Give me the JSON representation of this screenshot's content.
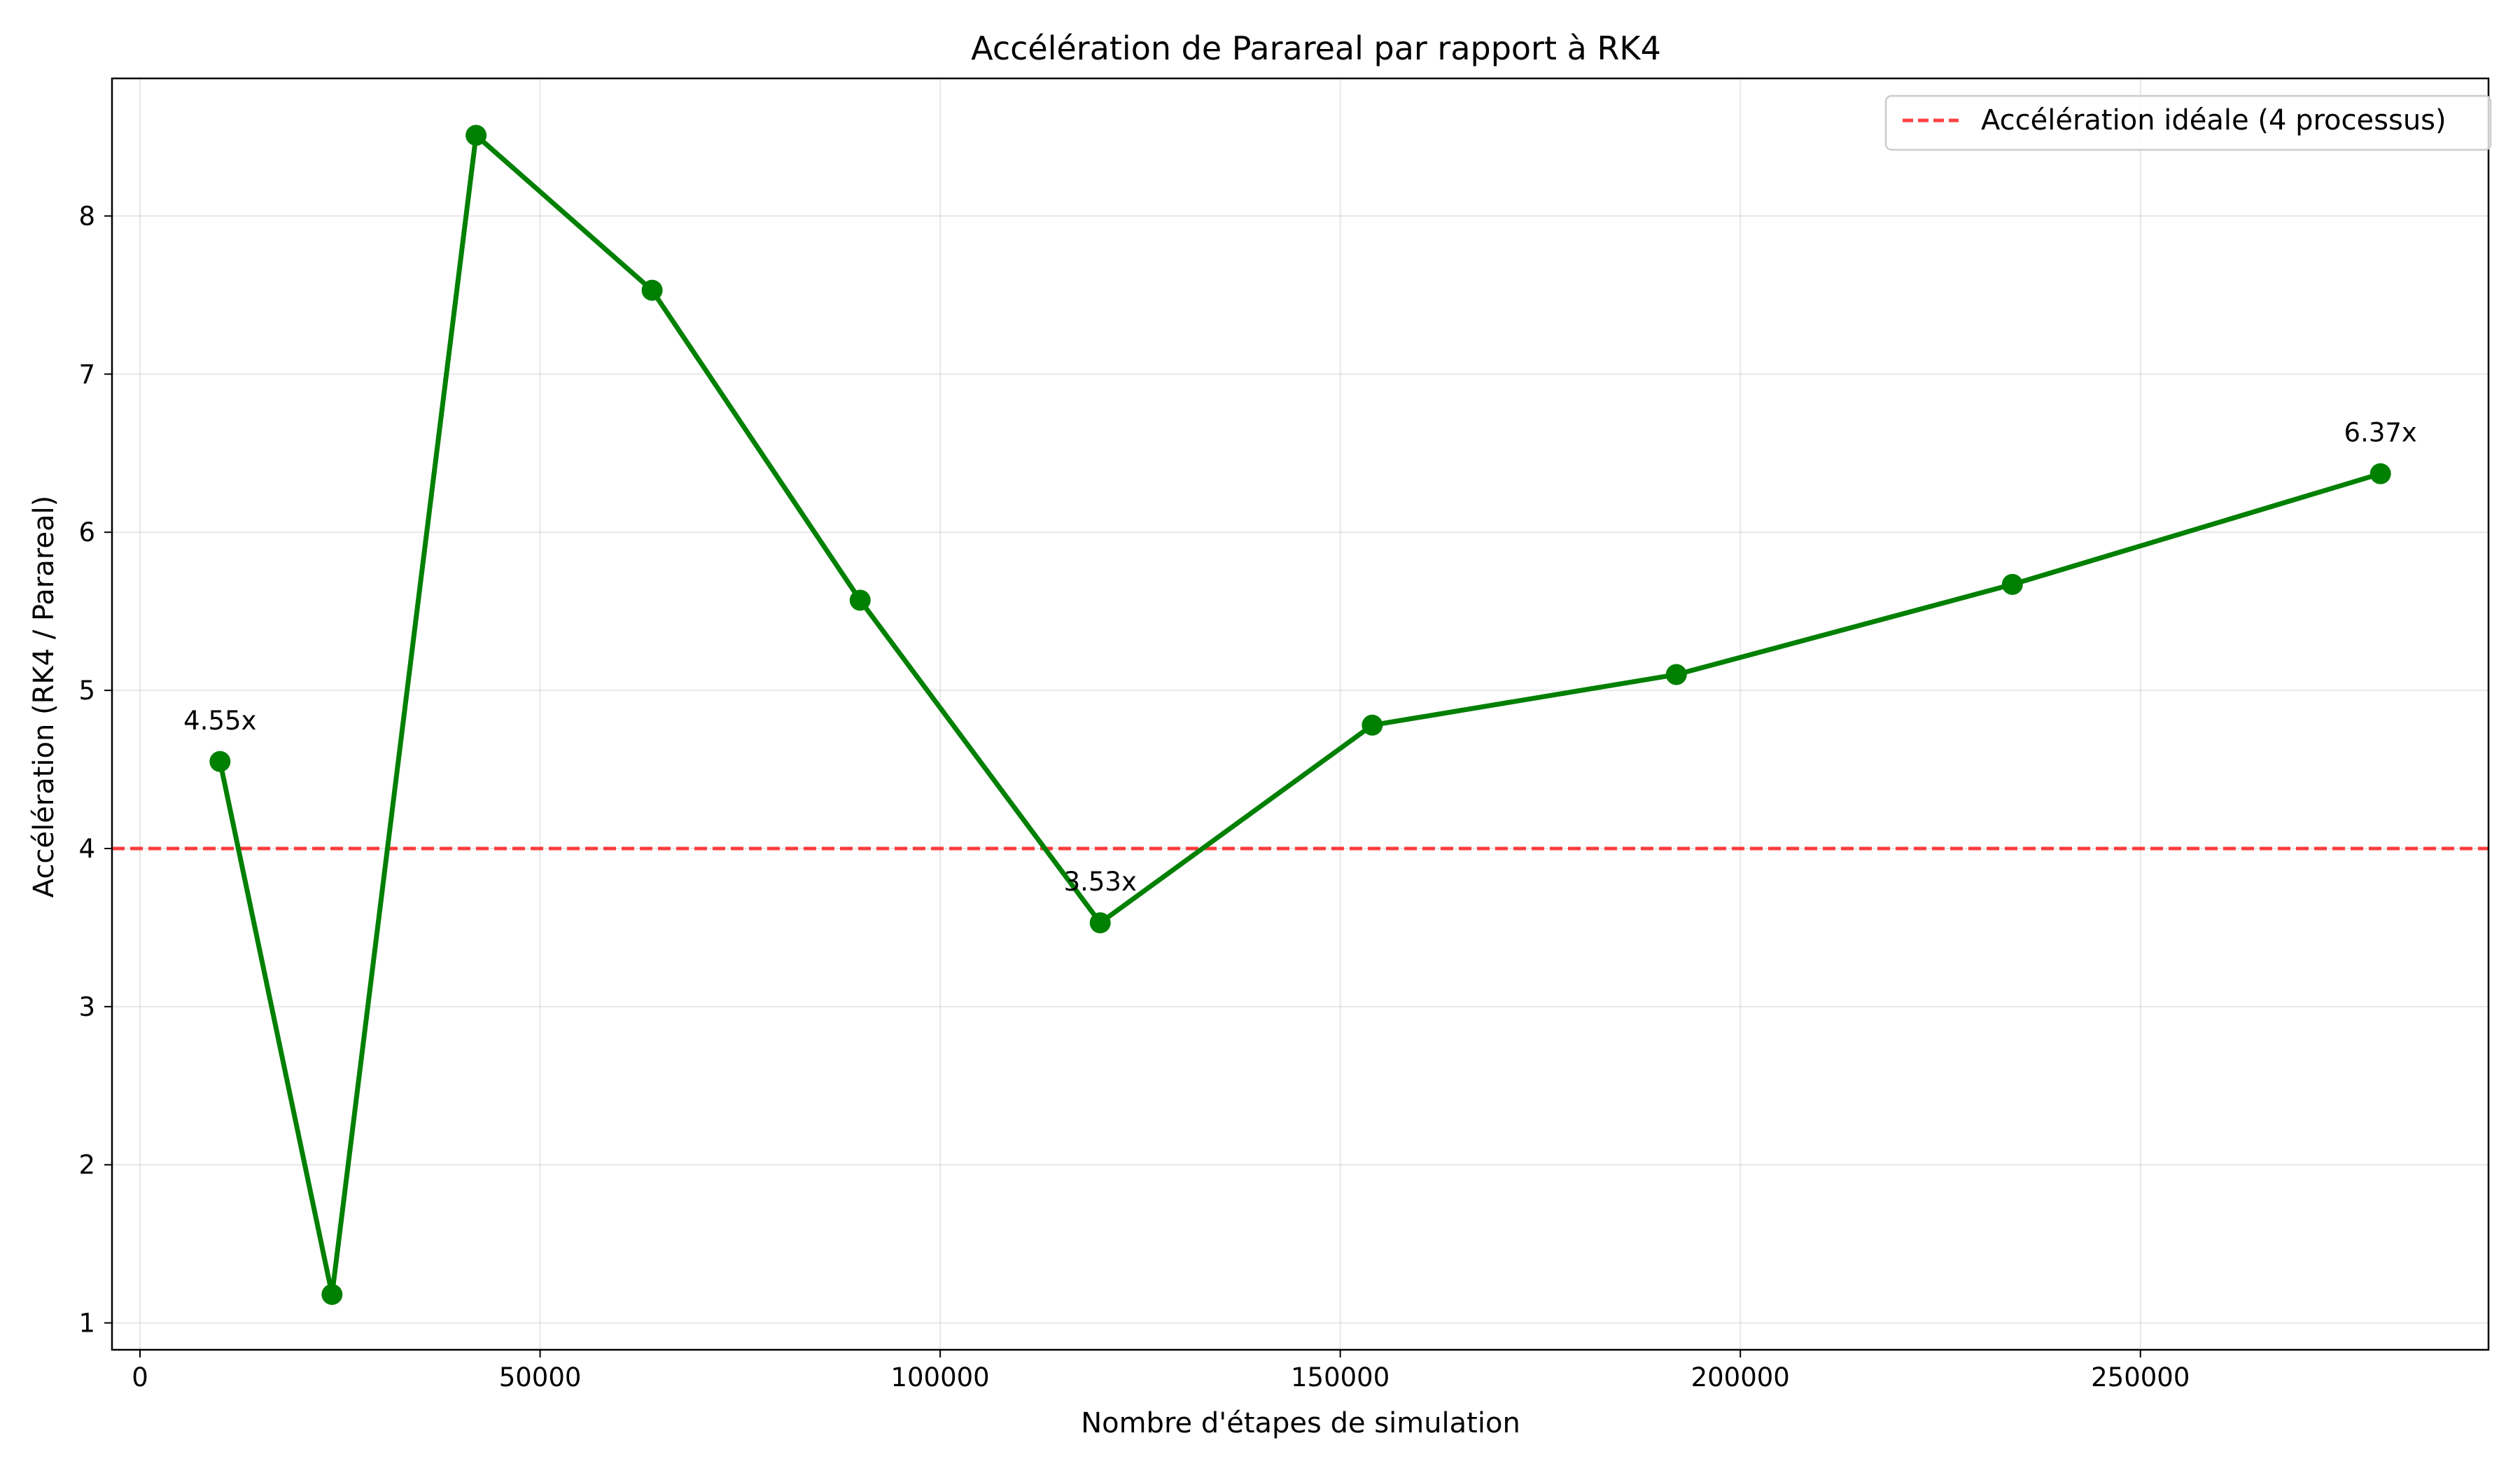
{
  "chart_data": {
    "type": "line",
    "title": "Accélération de Parareal par rapport à RK4",
    "xlabel": "Nombre d'étapes de simulation",
    "ylabel": "Accélération (RK4 / Parareal)",
    "xlim": [
      -3500,
      293500
    ],
    "ylim": [
      0.83,
      8.87
    ],
    "xticks": [
      0,
      50000,
      100000,
      150000,
      200000,
      250000
    ],
    "xtick_labels": [
      "0",
      "50000",
      "100000",
      "150000",
      "200000",
      "250000"
    ],
    "yticks": [
      1,
      2,
      3,
      4,
      5,
      6,
      7,
      8
    ],
    "ytick_labels": [
      "1",
      "2",
      "3",
      "4",
      "5",
      "6",
      "7",
      "8"
    ],
    "grid": true,
    "legend_position": "top-right",
    "series": [
      {
        "color": "#008000",
        "marker": "circle",
        "x": [
          10000,
          24000,
          42000,
          64000,
          90000,
          120000,
          154000,
          192000,
          234000,
          280000
        ],
        "y": [
          4.55,
          1.18,
          8.51,
          7.53,
          5.57,
          3.53,
          4.78,
          5.1,
          5.67,
          6.37
        ]
      }
    ],
    "reference_line": {
      "name": "Accélération idéale (4 processus)",
      "y": 4,
      "color": "#ff0000",
      "style": "dashed"
    },
    "annotations": [
      {
        "x": 10000,
        "y": 4.55,
        "text": "4.55x"
      },
      {
        "x": 120000,
        "y": 3.53,
        "text": "3.53x"
      },
      {
        "x": 280000,
        "y": 6.37,
        "text": "6.37x"
      }
    ]
  }
}
